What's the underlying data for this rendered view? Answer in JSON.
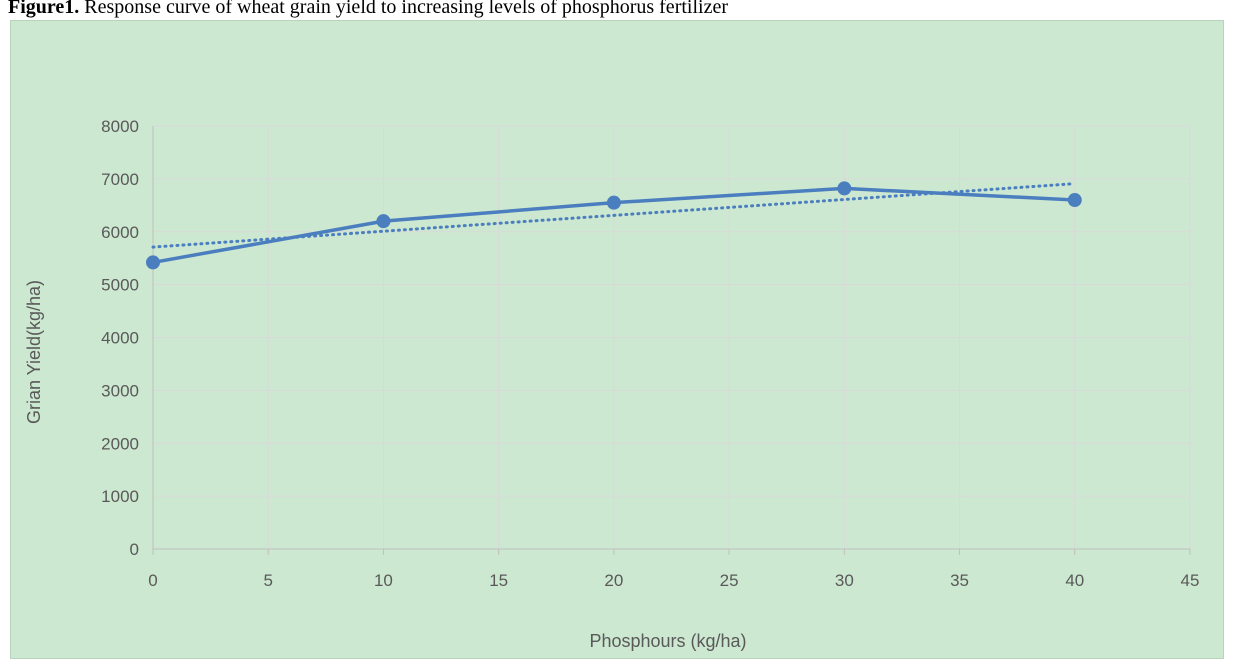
{
  "figure": {
    "label": "Figure1.",
    "caption": "Response curve of wheat grain yield to increasing levels of phosphorus fertilizer"
  },
  "colors": {
    "panel_bg": "#cde8d1",
    "series": "#4a7ebf",
    "grid": "#d9d9d9",
    "tick_text": "#595959"
  },
  "chart_data": {
    "type": "line",
    "title": "",
    "xlabel": "Phosphours (kg/ha)",
    "ylabel": "Grian Yield(kg/ha)",
    "xlim": [
      0,
      45
    ],
    "ylim": [
      0,
      8000
    ],
    "x_ticks": [
      "0",
      "5",
      "10",
      "15",
      "20",
      "25",
      "30",
      "35",
      "40",
      "45"
    ],
    "y_ticks": [
      "0",
      "1000",
      "2000",
      "3000",
      "4000",
      "5000",
      "6000",
      "7000",
      "8000"
    ],
    "grid": true,
    "legend": "none",
    "series": [
      {
        "x": [
          0,
          10,
          20,
          30,
          40
        ],
        "y": [
          5420,
          6200,
          6550,
          6820,
          6600
        ],
        "markers": true,
        "line_style": "solid"
      }
    ],
    "trendline": {
      "type": "linear",
      "line_style": "dotted",
      "x": [
        0,
        40
      ],
      "y": [
        5710,
        6910
      ]
    }
  }
}
